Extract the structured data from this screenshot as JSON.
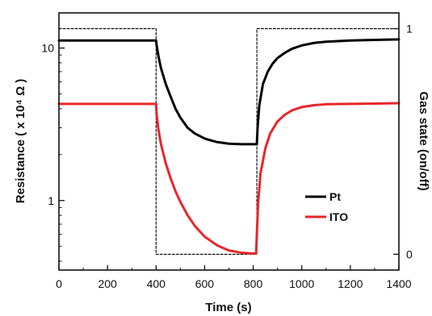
{
  "chart_data": {
    "type": "line",
    "xlabel": "Time (s)",
    "ylabel": "Resistance ( x 10⁴ Ω )",
    "y2label": "Gas state (on/off)",
    "xlim": [
      0,
      1400
    ],
    "ylim": [
      0.35,
      17
    ],
    "y_scale": "log",
    "y2lim": [
      -0.07,
      1.07
    ],
    "xticks": [
      0,
      200,
      400,
      600,
      800,
      1000,
      1200,
      1400
    ],
    "xtick_labels": [
      "0",
      "200",
      "400",
      "600",
      "800",
      "1000",
      "1200",
      "1400"
    ],
    "yticks": [
      1,
      10
    ],
    "ytick_labels": [
      "1",
      "10"
    ],
    "y2ticks": [
      0,
      1
    ],
    "y2tick_labels": [
      "0",
      "1"
    ],
    "legend_position": "lower-right",
    "series": [
      {
        "name": "Pt",
        "color": "#000000",
        "axis": "left",
        "x": [
          0,
          100,
          200,
          300,
          400,
          402,
          410,
          420,
          440,
          460,
          480,
          500,
          530,
          560,
          600,
          650,
          700,
          750,
          800,
          815,
          818,
          825,
          840,
          860,
          880,
          900,
          930,
          960,
          1000,
          1050,
          1100,
          1150,
          1200,
          1300,
          1400
        ],
        "values": [
          11.2,
          11.2,
          11.2,
          11.2,
          11.2,
          10.5,
          8.8,
          7.4,
          5.8,
          4.8,
          4.0,
          3.5,
          3.0,
          2.75,
          2.55,
          2.42,
          2.36,
          2.34,
          2.34,
          2.34,
          3.0,
          4.2,
          5.8,
          7.0,
          7.9,
          8.6,
          9.3,
          9.9,
          10.4,
          10.8,
          11.0,
          11.1,
          11.2,
          11.3,
          11.4
        ]
      },
      {
        "name": "ITO",
        "color": "#e8262b",
        "axis": "left",
        "x": [
          0,
          100,
          200,
          300,
          400,
          402,
          410,
          420,
          440,
          460,
          480,
          500,
          530,
          560,
          600,
          650,
          700,
          750,
          790,
          812,
          815,
          820,
          830,
          850,
          870,
          900,
          930,
          960,
          1000,
          1050,
          1100,
          1200,
          1300,
          1400
        ],
        "values": [
          4.3,
          4.3,
          4.3,
          4.3,
          4.3,
          3.7,
          2.9,
          2.35,
          1.75,
          1.4,
          1.15,
          0.98,
          0.8,
          0.68,
          0.58,
          0.51,
          0.47,
          0.455,
          0.45,
          0.45,
          0.6,
          0.95,
          1.5,
          2.2,
          2.75,
          3.3,
          3.65,
          3.9,
          4.1,
          4.22,
          4.28,
          4.3,
          4.32,
          4.35
        ]
      },
      {
        "name": "Gas state",
        "color": "#000000",
        "style": "dashed",
        "axis": "right",
        "x": [
          0,
          400,
          400,
          815,
          815,
          1400
        ],
        "values": [
          1,
          1,
          0,
          0,
          1,
          1
        ]
      }
    ]
  }
}
